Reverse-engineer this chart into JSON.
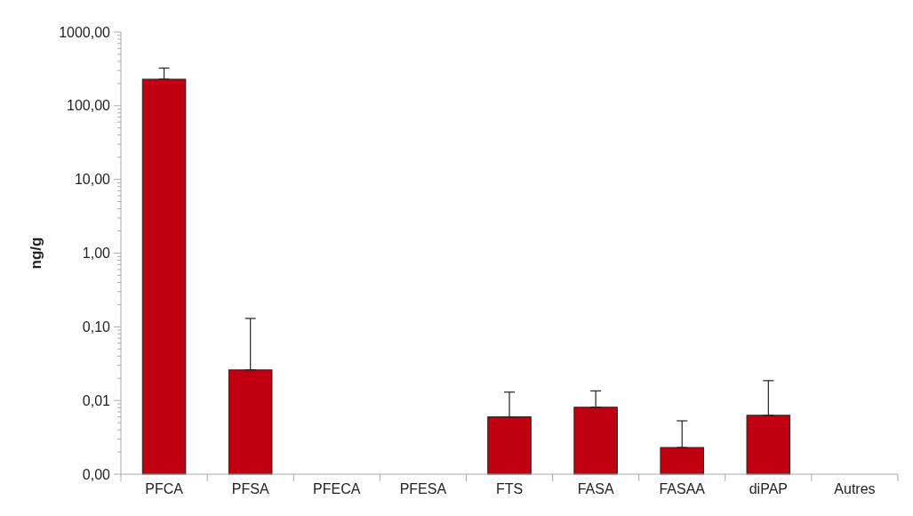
{
  "chart_data": {
    "type": "bar",
    "ylabel": "ng/g",
    "log": true,
    "grid": false,
    "categories": [
      "PFCA",
      "PFSA",
      "PFECA",
      "PFESA",
      "FTS",
      "FASA",
      "FASAA",
      "diPAP",
      "Autres"
    ],
    "values": [
      229,
      0.026,
      null,
      null,
      0.006,
      0.0081,
      0.0023,
      0.0063,
      null
    ],
    "errors": [
      [
        229,
        324
      ],
      [
        0.026,
        0.13
      ],
      null,
      null,
      [
        0.006,
        0.013
      ],
      [
        0.0081,
        0.0135
      ],
      [
        0.0023,
        0.0053
      ],
      [
        0.0063,
        0.0186
      ],
      null
    ],
    "color": "#c00010",
    "ylim": [
      0.001,
      1000
    ],
    "yticks": [
      {
        "value": 0.001,
        "label": "0,00"
      },
      {
        "value": 0.01,
        "label": "0,01"
      },
      {
        "value": 0.1,
        "label": "0,10"
      },
      {
        "value": 1,
        "label": "1,00"
      },
      {
        "value": 10,
        "label": "10,00"
      },
      {
        "value": 100,
        "label": "100,00"
      },
      {
        "value": 1000,
        "label": "1000,00"
      }
    ]
  }
}
